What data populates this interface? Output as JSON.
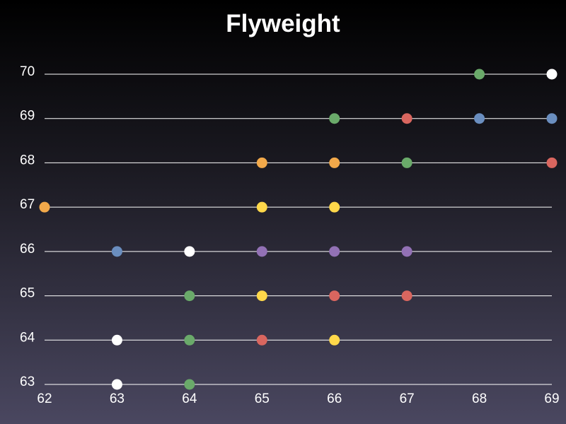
{
  "chart_data": {
    "type": "scatter",
    "title": "Flyweight",
    "xlabel": "",
    "ylabel": "",
    "xlim": [
      62,
      69
    ],
    "ylim": [
      63,
      70
    ],
    "x_ticks": [
      "62",
      "63",
      "64",
      "65",
      "66",
      "67",
      "68",
      "69"
    ],
    "y_ticks": [
      "63",
      "64",
      "65",
      "66",
      "67",
      "68",
      "69",
      "70"
    ],
    "grid": "horizontal",
    "legend": "none",
    "points": [
      {
        "x": 68,
        "y": 70,
        "color": "#6aaa6a"
      },
      {
        "x": 69,
        "y": 70,
        "color": "#ffffff"
      },
      {
        "x": 66,
        "y": 69,
        "color": "#6aaa6a"
      },
      {
        "x": 67,
        "y": 69,
        "color": "#d9665f"
      },
      {
        "x": 68,
        "y": 69,
        "color": "#6a8ebf"
      },
      {
        "x": 69,
        "y": 69,
        "color": "#6a8ebf"
      },
      {
        "x": 65,
        "y": 68,
        "color": "#f2a94a"
      },
      {
        "x": 66,
        "y": 68,
        "color": "#f2a94a"
      },
      {
        "x": 67,
        "y": 68,
        "color": "#6aaa6a"
      },
      {
        "x": 69,
        "y": 68,
        "color": "#d9665f"
      },
      {
        "x": 62,
        "y": 67,
        "color": "#f2a94a"
      },
      {
        "x": 65,
        "y": 67,
        "color": "#ffd84a"
      },
      {
        "x": 66,
        "y": 67,
        "color": "#ffd84a"
      },
      {
        "x": 63,
        "y": 66,
        "color": "#6a8ebf"
      },
      {
        "x": 64,
        "y": 66,
        "color": "#ffffff"
      },
      {
        "x": 65,
        "y": 66,
        "color": "#9271b5"
      },
      {
        "x": 66,
        "y": 66,
        "color": "#9271b5"
      },
      {
        "x": 67,
        "y": 66,
        "color": "#9271b5"
      },
      {
        "x": 64,
        "y": 65,
        "color": "#6aaa6a"
      },
      {
        "x": 65,
        "y": 65,
        "color": "#ffd84a"
      },
      {
        "x": 66,
        "y": 65,
        "color": "#d9665f"
      },
      {
        "x": 67,
        "y": 65,
        "color": "#d9665f"
      },
      {
        "x": 63,
        "y": 64,
        "color": "#ffffff"
      },
      {
        "x": 64,
        "y": 64,
        "color": "#6aaa6a"
      },
      {
        "x": 65,
        "y": 64,
        "color": "#d9665f"
      },
      {
        "x": 66,
        "y": 64,
        "color": "#ffd84a"
      },
      {
        "x": 63,
        "y": 63,
        "color": "#ffffff"
      },
      {
        "x": 64,
        "y": 63,
        "color": "#6aaa6a"
      }
    ]
  }
}
